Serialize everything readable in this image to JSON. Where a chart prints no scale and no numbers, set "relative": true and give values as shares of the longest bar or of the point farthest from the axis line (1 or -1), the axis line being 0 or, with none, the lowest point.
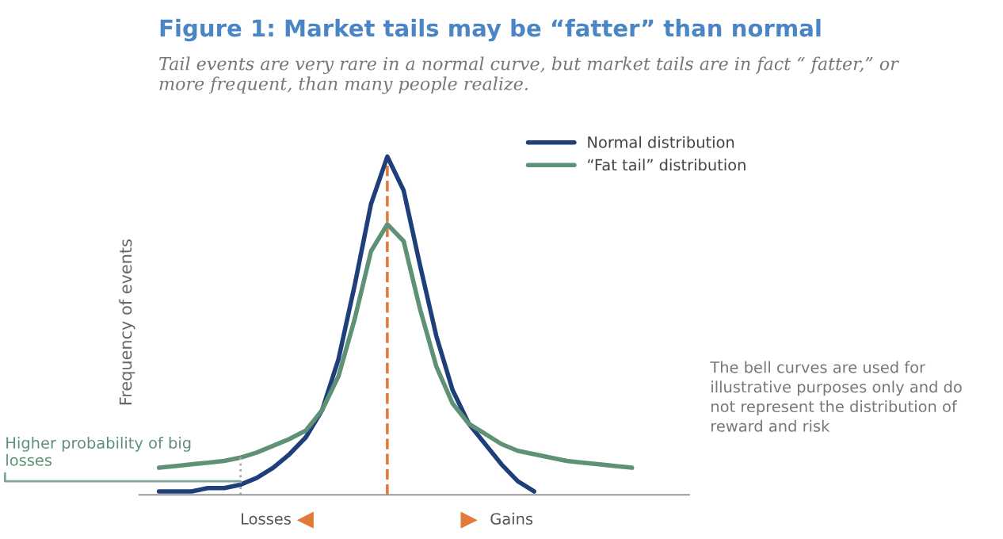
{
  "chart_data": {
    "type": "line",
    "relative": true,
    "title": "Figure 1: Market tails may be “fatter” than normal",
    "subtitle": "Tail events are very rare in a normal curve, but market tails are in fact “ fatter,” or more frequent, than many people realize.",
    "ylabel": "Frequency of events",
    "categories": [
      null,
      null,
      null,
      null,
      null,
      null,
      null,
      null,
      null,
      null,
      null,
      null,
      null,
      null,
      null,
      null,
      null,
      null,
      null,
      null,
      null,
      null,
      null,
      null,
      null,
      null,
      null,
      null,
      null,
      null
    ],
    "series": [
      {
        "name": "Normal distribution",
        "color": "#1f3f7a",
        "values": [
          0.01,
          0.01,
          0.01,
          0.02,
          0.02,
          0.03,
          0.05,
          0.08,
          0.12,
          0.17,
          0.25,
          0.4,
          0.62,
          0.86,
          1.0,
          0.9,
          0.68,
          0.47,
          0.31,
          0.21,
          0.15,
          0.09,
          0.04,
          0.01,
          null,
          null,
          null,
          null,
          null,
          null
        ]
      },
      {
        "name": "“Fat tail” distribution",
        "color": "#5e9176",
        "values": [
          0.08,
          0.085,
          0.09,
          0.095,
          0.1,
          0.11,
          0.125,
          0.145,
          0.165,
          0.19,
          0.25,
          0.35,
          0.52,
          0.72,
          0.8,
          0.75,
          0.55,
          0.38,
          0.27,
          0.21,
          0.18,
          0.15,
          0.13,
          0.12,
          0.11,
          0.1,
          0.095,
          0.09,
          0.085,
          0.08
        ]
      }
    ],
    "annotations": [
      "Higher probability of big losses",
      "Losses",
      "Gains",
      "The bell curves are used for illustrative purposes only and do not represent the distribution of reward and risk"
    ],
    "legend": "top right",
    "line_style": "solid",
    "marker": "none"
  }
}
